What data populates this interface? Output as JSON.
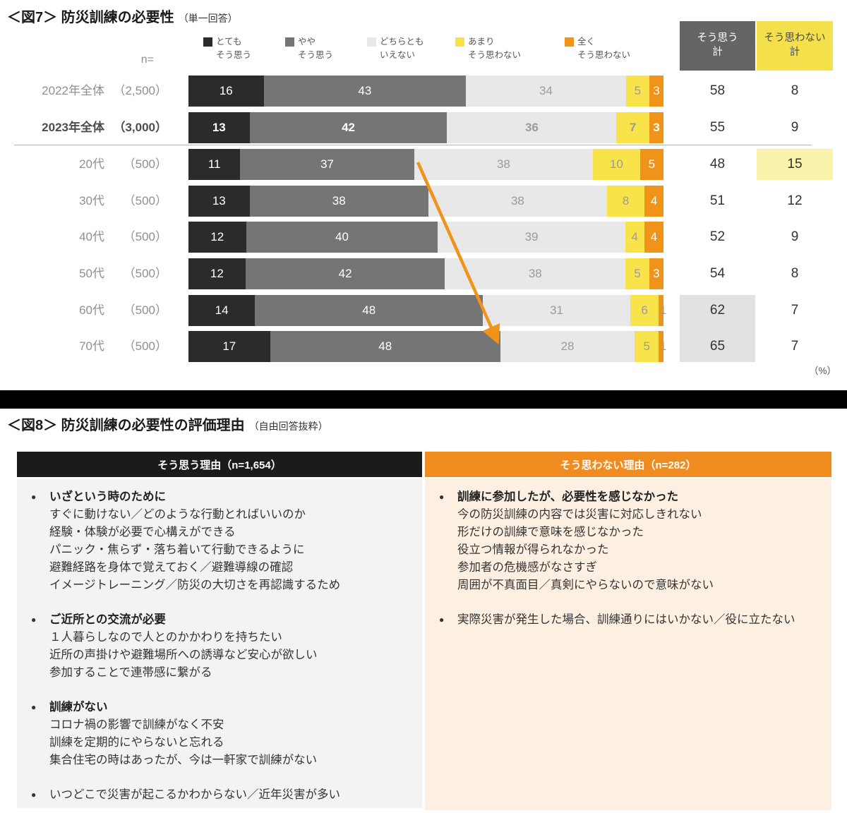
{
  "fig7": {
    "title": "＜図7＞ 防災訓練の必要性",
    "title_note": "（単一回答）",
    "n_label": "n=",
    "unit": "（%）",
    "legend": [
      {
        "name": "totemo-souomou",
        "label": "とても\nそう思う",
        "color": "#2b2b2b"
      },
      {
        "name": "yaya-souomou",
        "label": "やや\nそう思う",
        "color": "#757575"
      },
      {
        "name": "dochiratomo-ienai",
        "label": "どちらとも\nいえない",
        "color": "#e8e8e8"
      },
      {
        "name": "amari-souomowanai",
        "label": "あまり\nそう思わない",
        "color": "#f9e34a"
      },
      {
        "name": "mattaku-souomowanai",
        "label": "全く\nそう思わない",
        "color": "#ef9418"
      }
    ],
    "agree_header": {
      "line1": "そう思う",
      "line2": "計"
    },
    "disagree_header": {
      "line1": "そう思わない",
      "line2": "計"
    },
    "segment_colors": [
      "#2b2b2b",
      "#757575",
      "#e8e8e8",
      "#f9e34a",
      "#ef9418"
    ],
    "segment_label_colors": [
      "#ffffff",
      "#ffffff",
      "#9b9b9b",
      "#9b9b9b",
      "#ffffff"
    ],
    "rows": [
      {
        "label": "2022年全体",
        "n": "（2,500）",
        "values": [
          16,
          43,
          34,
          5,
          3
        ],
        "agree": "58",
        "disagree": "8",
        "bold": false,
        "agree_highlight": false,
        "disagree_highlight": false
      },
      {
        "label": "2023年全体",
        "n": "（3,000）",
        "values": [
          13,
          42,
          36,
          7,
          3
        ],
        "agree": "55",
        "disagree": "9",
        "bold": true,
        "agree_highlight": false,
        "disagree_highlight": false
      },
      {
        "label": "20代",
        "n": "（500）",
        "values": [
          11,
          37,
          38,
          10,
          5
        ],
        "agree": "48",
        "disagree": "15",
        "bold": false,
        "agree_highlight": false,
        "disagree_highlight": true
      },
      {
        "label": "30代",
        "n": "（500）",
        "values": [
          13,
          38,
          38,
          8,
          4
        ],
        "agree": "51",
        "disagree": "12",
        "bold": false,
        "agree_highlight": false,
        "disagree_highlight": false
      },
      {
        "label": "40代",
        "n": "（500）",
        "values": [
          12,
          40,
          39,
          4,
          4
        ],
        "agree": "52",
        "disagree": "9",
        "bold": false,
        "agree_highlight": false,
        "disagree_highlight": false
      },
      {
        "label": "50代",
        "n": "（500）",
        "values": [
          12,
          42,
          38,
          5,
          3
        ],
        "agree": "54",
        "disagree": "8",
        "bold": false,
        "agree_highlight": false,
        "disagree_highlight": false
      },
      {
        "label": "60代",
        "n": "（500）",
        "values": [
          14,
          48,
          31,
          6,
          1
        ],
        "agree": "62",
        "disagree": "7",
        "bold": false,
        "agree_highlight": true,
        "disagree_highlight": false
      },
      {
        "label": "70代",
        "n": "（500）",
        "values": [
          17,
          48,
          28,
          5,
          1
        ],
        "agree": "65",
        "disagree": "7",
        "bold": false,
        "agree_highlight": true,
        "disagree_highlight": false
      }
    ]
  },
  "fig8": {
    "title": "＜図8＞ 防災訓練の必要性の評価理由",
    "title_note": "（自由回答抜粋）",
    "left": {
      "header": "そう思う理由（n=1,654）",
      "groups": [
        {
          "heading": "いざという時のために",
          "bold": true,
          "lines": [
            "すぐに動けない／どのような行動とればいいのか",
            "経験・体験が必要で心構えができる",
            "パニック・焦らず・落ち着いて行動できるように",
            "避難経路を身体で覚えておく／避難導線の確認",
            "イメージトレーニング／防災の大切さを再認識するため"
          ]
        },
        {
          "heading": "ご近所との交流が必要",
          "bold": true,
          "lines": [
            "１人暮らしなので人とのかかわりを持ちたい",
            "近所の声掛けや避難場所への誘導など安心が欲しい",
            "参加することで連帯感に繋がる"
          ]
        },
        {
          "heading": "訓練がない",
          "bold": true,
          "lines": [
            "コロナ禍の影響で訓練がなく不安",
            "訓練を定期的にやらないと忘れる",
            "集合住宅の時はあったが、今は一軒家で訓練がない"
          ]
        },
        {
          "heading": "いつどこで災害が起こるかわからない／近年災害が多い",
          "bold": false,
          "lines": []
        }
      ]
    },
    "right": {
      "header": "そう思わない理由（n=282）",
      "groups": [
        {
          "heading": "訓練に参加したが、必要性を感じなかった",
          "bold": true,
          "lines": [
            "今の防災訓練の内容では災害に対応しきれない",
            "形だけの訓練で意味を感じなかった",
            "役立つ情報が得られなかった",
            "参加者の危機感がなさすぎ",
            "周囲が不真面目／真剣にやらないので意味がない"
          ]
        },
        {
          "heading": "実際災害が発生した場合、訓練通りにはいかない／役に立たない",
          "bold": false,
          "lines": []
        }
      ]
    }
  },
  "chart_data": {
    "type": "bar",
    "orientation": "horizontal-stacked",
    "title": "＜図7＞ 防災訓練の必要性（単一回答）",
    "unit": "%",
    "categories": [
      "2022年全体 (2,500)",
      "2023年全体 (3,000)",
      "20代 (500)",
      "30代 (500)",
      "40代 (500)",
      "50代 (500)",
      "60代 (500)",
      "70代 (500)"
    ],
    "series": [
      {
        "name": "とてもそう思う",
        "color": "#2b2b2b",
        "values": [
          16,
          13,
          11,
          13,
          12,
          12,
          14,
          17
        ]
      },
      {
        "name": "ややそう思う",
        "color": "#757575",
        "values": [
          43,
          42,
          37,
          38,
          40,
          42,
          48,
          48
        ]
      },
      {
        "name": "どちらともいえない",
        "color": "#e8e8e8",
        "values": [
          34,
          36,
          38,
          38,
          39,
          38,
          31,
          28
        ]
      },
      {
        "name": "あまりそう思わない",
        "color": "#f9e34a",
        "values": [
          5,
          7,
          10,
          8,
          4,
          5,
          6,
          5
        ]
      },
      {
        "name": "全くそう思わない",
        "color": "#ef9418",
        "values": [
          3,
          3,
          5,
          4,
          4,
          3,
          1,
          1
        ]
      }
    ],
    "totals": {
      "そう思う計": [
        58,
        55,
        48,
        51,
        52,
        54,
        62,
        65
      ],
      "そう思わない計": [
        8,
        9,
        15,
        12,
        9,
        8,
        7,
        7
      ]
    },
    "xlim": [
      0,
      100
    ],
    "legend_position": "top",
    "annotations": [
      "orange trend arrow from 20代 toward 70代",
      "highlight: 20代 そう思わない計 15",
      "highlight: 60代/70代 そう思う計 62・65"
    ]
  }
}
